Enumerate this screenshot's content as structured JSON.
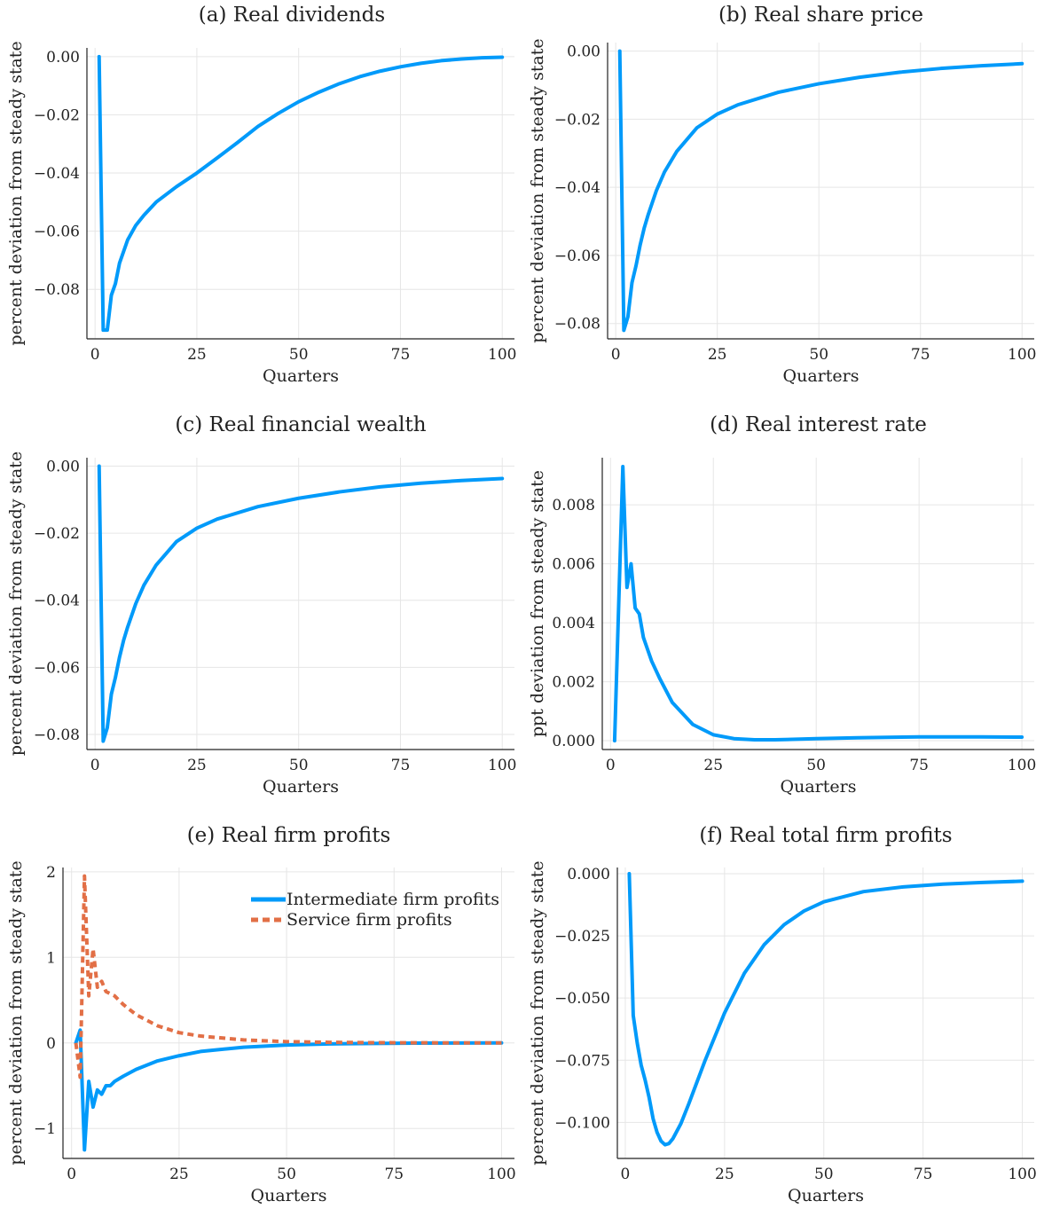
{
  "chart_data": [
    {
      "id": "a",
      "type": "line",
      "title": "(a) Real dividends",
      "xlabel": "Quarters",
      "ylabel": "percent deviation from steady state",
      "xlim": [
        -2,
        103
      ],
      "ylim": [
        -0.097,
        0.003
      ],
      "xticks": [
        0,
        25,
        50,
        75,
        100
      ],
      "xtick_labels": [
        "0",
        "25",
        "50",
        "75",
        "100"
      ],
      "yticks": [
        0,
        -0.02,
        -0.04,
        -0.06,
        -0.08
      ],
      "ytick_labels": [
        "0.00",
        "−0.02",
        "−0.04",
        "−0.06",
        "−0.08"
      ],
      "grid": true,
      "series": [
        {
          "color": "#009AFA",
          "dash": "solid",
          "points": [
            [
              1,
              0
            ],
            [
              2,
              -0.094
            ],
            [
              3,
              -0.094
            ],
            [
              4,
              -0.082
            ],
            [
              5,
              -0.078
            ],
            [
              6,
              -0.071
            ],
            [
              7,
              -0.067
            ],
            [
              8,
              -0.063
            ],
            [
              10,
              -0.058
            ],
            [
              12,
              -0.0545
            ],
            [
              15,
              -0.05
            ],
            [
              20,
              -0.0447
            ],
            [
              25,
              -0.04
            ],
            [
              30,
              -0.0348
            ],
            [
              35,
              -0.0295
            ],
            [
              40,
              -0.024
            ],
            [
              45,
              -0.0195
            ],
            [
              50,
              -0.0155
            ],
            [
              55,
              -0.0122
            ],
            [
              60,
              -0.0093
            ],
            [
              65,
              -0.0069
            ],
            [
              70,
              -0.005
            ],
            [
              75,
              -0.0035
            ],
            [
              80,
              -0.0023
            ],
            [
              85,
              -0.0014
            ],
            [
              90,
              -0.0008
            ],
            [
              95,
              -0.0004
            ],
            [
              100,
              -0.0002
            ]
          ]
        }
      ]
    },
    {
      "id": "b",
      "type": "line",
      "title": "(b) Real share price",
      "xlabel": "Quarters",
      "ylabel": "percent deviation from steady state",
      "xlim": [
        -2,
        103
      ],
      "ylim": [
        -0.0845,
        0.0025
      ],
      "xticks": [
        0,
        25,
        50,
        75,
        100
      ],
      "xtick_labels": [
        "0",
        "25",
        "50",
        "75",
        "100"
      ],
      "yticks": [
        0,
        -0.02,
        -0.04,
        -0.06,
        -0.08
      ],
      "ytick_labels": [
        "0.00",
        "−0.02",
        "−0.04",
        "−0.06",
        "−0.08"
      ],
      "grid": true,
      "series": [
        {
          "color": "#009AFA",
          "dash": "solid",
          "points": [
            [
              1,
              0
            ],
            [
              2,
              -0.082
            ],
            [
              3,
              -0.078
            ],
            [
              4,
              -0.068
            ],
            [
              5,
              -0.063
            ],
            [
              6,
              -0.057
            ],
            [
              7,
              -0.052
            ],
            [
              8,
              -0.048
            ],
            [
              10,
              -0.041
            ],
            [
              12,
              -0.0355
            ],
            [
              15,
              -0.0295
            ],
            [
              20,
              -0.0225
            ],
            [
              25,
              -0.0185
            ],
            [
              30,
              -0.0158
            ],
            [
              40,
              -0.0121
            ],
            [
              50,
              -0.0096
            ],
            [
              60,
              -0.0077
            ],
            [
              70,
              -0.0062
            ],
            [
              80,
              -0.0051
            ],
            [
              90,
              -0.0043
            ],
            [
              100,
              -0.0037
            ]
          ]
        }
      ]
    },
    {
      "id": "c",
      "type": "line",
      "title": "(c) Real financial wealth",
      "xlabel": "Quarters",
      "ylabel": "percent deviation from steady state",
      "xlim": [
        -2,
        103
      ],
      "ylim": [
        -0.0845,
        0.0025
      ],
      "xticks": [
        0,
        25,
        50,
        75,
        100
      ],
      "xtick_labels": [
        "0",
        "25",
        "50",
        "75",
        "100"
      ],
      "yticks": [
        0,
        -0.02,
        -0.04,
        -0.06,
        -0.08
      ],
      "ytick_labels": [
        "0.00",
        "−0.02",
        "−0.04",
        "−0.06",
        "−0.08"
      ],
      "grid": true,
      "series": [
        {
          "color": "#009AFA",
          "dash": "solid",
          "points": [
            [
              1,
              0
            ],
            [
              2,
              -0.082
            ],
            [
              3,
              -0.078
            ],
            [
              4,
              -0.068
            ],
            [
              5,
              -0.063
            ],
            [
              6,
              -0.057
            ],
            [
              7,
              -0.052
            ],
            [
              8,
              -0.048
            ],
            [
              10,
              -0.041
            ],
            [
              12,
              -0.0355
            ],
            [
              15,
              -0.0295
            ],
            [
              20,
              -0.0225
            ],
            [
              25,
              -0.0185
            ],
            [
              30,
              -0.0158
            ],
            [
              40,
              -0.0121
            ],
            [
              50,
              -0.0096
            ],
            [
              60,
              -0.0077
            ],
            [
              70,
              -0.0062
            ],
            [
              80,
              -0.0051
            ],
            [
              90,
              -0.0043
            ],
            [
              100,
              -0.0037
            ]
          ]
        }
      ]
    },
    {
      "id": "d",
      "type": "line",
      "title": "(d) Real interest rate",
      "xlabel": "Quarters",
      "ylabel": "ppt deviation from steady state",
      "xlim": [
        -2,
        103
      ],
      "ylim": [
        -0.0003,
        0.0096
      ],
      "xticks": [
        0,
        25,
        50,
        75,
        100
      ],
      "xtick_labels": [
        "0",
        "25",
        "50",
        "75",
        "100"
      ],
      "yticks": [
        0,
        0.002,
        0.004,
        0.006,
        0.008
      ],
      "ytick_labels": [
        "0.000",
        "0.002",
        "0.004",
        "0.006",
        "0.008"
      ],
      "grid": true,
      "series": [
        {
          "color": "#009AFA",
          "dash": "solid",
          "points": [
            [
              1,
              0
            ],
            [
              3,
              0.0093
            ],
            [
              4,
              0.0052
            ],
            [
              5,
              0.006
            ],
            [
              6,
              0.0045
            ],
            [
              7,
              0.0043
            ],
            [
              8,
              0.0035
            ],
            [
              9,
              0.0031
            ],
            [
              10,
              0.0027
            ],
            [
              12,
              0.0021
            ],
            [
              15,
              0.0013
            ],
            [
              20,
              0.00055
            ],
            [
              25,
              0.0002
            ],
            [
              30,
              7e-05
            ],
            [
              35,
              3e-05
            ],
            [
              40,
              3e-05
            ],
            [
              50,
              7e-05
            ],
            [
              60,
              0.0001
            ],
            [
              75,
              0.00013
            ],
            [
              90,
              0.00013
            ],
            [
              100,
              0.00012
            ]
          ]
        }
      ]
    },
    {
      "id": "e",
      "type": "line",
      "title": "(e) Real firm profits",
      "xlabel": "Quarters",
      "ylabel": "percent deviation from steady state",
      "xlim": [
        -2,
        103
      ],
      "ylim": [
        -1.35,
        2.05
      ],
      "xticks": [
        0,
        25,
        50,
        75,
        100
      ],
      "xtick_labels": [
        "0",
        "25",
        "50",
        "75",
        "100"
      ],
      "yticks": [
        2,
        1,
        0,
        -1
      ],
      "ytick_labels": [
        "2",
        "1",
        "0",
        "−1"
      ],
      "grid": true,
      "legend": {
        "placement": "top-right"
      },
      "series": [
        {
          "name": "Intermediate firm profits",
          "color": "#009AFA",
          "dash": "solid",
          "points": [
            [
              1,
              0
            ],
            [
              2,
              0.15
            ],
            [
              3,
              -1.25
            ],
            [
              4,
              -0.45
            ],
            [
              5,
              -0.75
            ],
            [
              6,
              -0.55
            ],
            [
              7,
              -0.6
            ],
            [
              8,
              -0.5
            ],
            [
              9,
              -0.5
            ],
            [
              10,
              -0.45
            ],
            [
              12,
              -0.39
            ],
            [
              15,
              -0.31
            ],
            [
              20,
              -0.21
            ],
            [
              25,
              -0.15
            ],
            [
              30,
              -0.1
            ],
            [
              40,
              -0.05
            ],
            [
              50,
              -0.025
            ],
            [
              60,
              -0.012
            ],
            [
              70,
              -0.006
            ],
            [
              80,
              -0.003
            ],
            [
              100,
              0
            ]
          ]
        },
        {
          "name": "Service firm profits",
          "color": "#E26F46",
          "dash": "dashed",
          "points": [
            [
              1,
              0
            ],
            [
              2,
              -0.4
            ],
            [
              3,
              1.95
            ],
            [
              4,
              0.55
            ],
            [
              5,
              1.1
            ],
            [
              6,
              0.65
            ],
            [
              7,
              0.72
            ],
            [
              8,
              0.6
            ],
            [
              10,
              0.55
            ],
            [
              12,
              0.45
            ],
            [
              15,
              0.33
            ],
            [
              20,
              0.2
            ],
            [
              25,
              0.12
            ],
            [
              30,
              0.08
            ],
            [
              40,
              0.035
            ],
            [
              50,
              0.015
            ],
            [
              60,
              0.007
            ],
            [
              70,
              0.003
            ],
            [
              80,
              0.001
            ],
            [
              100,
              0
            ]
          ]
        }
      ]
    },
    {
      "id": "f",
      "type": "line",
      "title": "(f) Real total firm profits",
      "xlabel": "Quarters",
      "ylabel": "percent deviation from steady state",
      "xlim": [
        -2,
        103
      ],
      "ylim": [
        -0.1145,
        0.0025
      ],
      "xticks": [
        0,
        25,
        50,
        75,
        100
      ],
      "xtick_labels": [
        "0",
        "25",
        "50",
        "75",
        "100"
      ],
      "yticks": [
        0,
        -0.025,
        -0.05,
        -0.075,
        -0.1
      ],
      "ytick_labels": [
        "0.000",
        "−0.025",
        "−0.050",
        "−0.075",
        "−0.100"
      ],
      "grid": true,
      "series": [
        {
          "color": "#009AFA",
          "dash": "solid",
          "points": [
            [
              1,
              0
            ],
            [
              2,
              -0.057
            ],
            [
              3,
              -0.068
            ],
            [
              4,
              -0.077
            ],
            [
              5,
              -0.083
            ],
            [
              6,
              -0.09
            ],
            [
              7,
              -0.0985
            ],
            [
              8,
              -0.104
            ],
            [
              9,
              -0.1075
            ],
            [
              10,
              -0.109
            ],
            [
              11,
              -0.1085
            ],
            [
              12,
              -0.1065
            ],
            [
              14,
              -0.1005
            ],
            [
              16,
              -0.0925
            ],
            [
              18,
              -0.084
            ],
            [
              20,
              -0.0755
            ],
            [
              25,
              -0.056
            ],
            [
              30,
              -0.04
            ],
            [
              35,
              -0.0285
            ],
            [
              40,
              -0.0205
            ],
            [
              45,
              -0.015
            ],
            [
              50,
              -0.0113
            ],
            [
              60,
              -0.0072
            ],
            [
              70,
              -0.0053
            ],
            [
              80,
              -0.0042
            ],
            [
              90,
              -0.0035
            ],
            [
              100,
              -0.003
            ]
          ]
        }
      ]
    }
  ]
}
